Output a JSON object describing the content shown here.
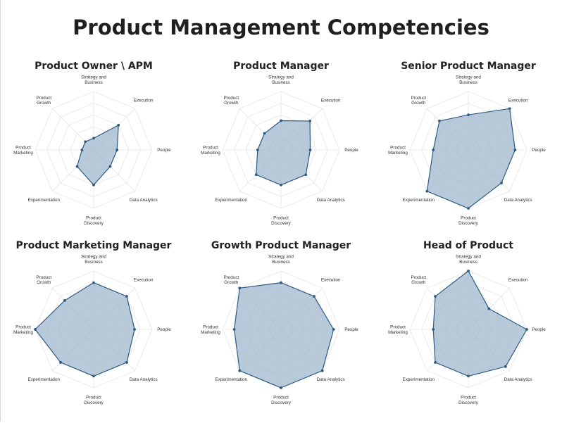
{
  "page": {
    "title": "Product Management Competencies"
  },
  "style": {
    "fill": "#9db6cc",
    "stroke": "#2b5a85",
    "grid": "#e6e6e6"
  },
  "chart_data": [
    {
      "type": "radar",
      "title": "Product Owner \\ APM",
      "axes": [
        [
          "Strategy and",
          "Business"
        ],
        [
          "Execution"
        ],
        [
          "People"
        ],
        [
          "Data Analytics"
        ],
        [
          "Product",
          "Discovery"
        ],
        [
          "Experimentation"
        ],
        [
          "Product",
          "Marketing"
        ],
        [
          "Product",
          "Growth"
        ]
      ],
      "values": [
        1,
        3,
        2,
        2,
        3,
        2,
        1,
        1
      ],
      "rlim": [
        0,
        5
      ],
      "grid": true
    },
    {
      "type": "radar",
      "title": "Product Manager",
      "axes": [
        [
          "Strategy and",
          "Business"
        ],
        [
          "Execution"
        ],
        [
          "People"
        ],
        [
          "Data Analytics"
        ],
        [
          "Product",
          "Discovery"
        ],
        [
          "Experimentation"
        ],
        [
          "Product",
          "Marketing"
        ],
        [
          "Product",
          "Growth"
        ]
      ],
      "values": [
        2.5,
        3.5,
        2.5,
        3,
        3,
        3,
        2,
        2
      ],
      "rlim": [
        0,
        5
      ],
      "grid": true
    },
    {
      "type": "radar",
      "title": "Senior Product Manager",
      "axes": [
        [
          "Strategy and",
          "Business"
        ],
        [
          "Execution"
        ],
        [
          "People"
        ],
        [
          "Data Analytics"
        ],
        [
          "Product",
          "Discovery"
        ],
        [
          "Experimentation"
        ],
        [
          "Product",
          "Marketing"
        ],
        [
          "Product",
          "Growth"
        ]
      ],
      "values": [
        3,
        5,
        4,
        4,
        5,
        5,
        3,
        3.5
      ],
      "rlim": [
        0,
        5
      ],
      "grid": true
    },
    {
      "type": "radar",
      "title": "Product Marketing Manager",
      "axes": [
        [
          "Strategy and",
          "Business"
        ],
        [
          "Execution"
        ],
        [
          "People"
        ],
        [
          "Data Analytics"
        ],
        [
          "Product",
          "Discovery"
        ],
        [
          "Experimentation"
        ],
        [
          "Product",
          "Marketing"
        ],
        [
          "Product",
          "Growth"
        ]
      ],
      "values": [
        4,
        4,
        3.5,
        4,
        4,
        4,
        5,
        3.5
      ],
      "rlim": [
        0,
        5
      ],
      "grid": true
    },
    {
      "type": "radar",
      "title": "Growth Product Manager",
      "axes": [
        [
          "Strategy and",
          "Business"
        ],
        [
          "Execution"
        ],
        [
          "People"
        ],
        [
          "Data Analytics"
        ],
        [
          "Product",
          "Discovery"
        ],
        [
          "Experimentation"
        ],
        [
          "Product",
          "Marketing"
        ],
        [
          "Product",
          "Growth"
        ]
      ],
      "values": [
        4,
        4,
        4.5,
        5,
        5,
        5,
        4,
        5
      ],
      "rlim": [
        0,
        5
      ],
      "grid": true
    },
    {
      "type": "radar",
      "title": "Head of Product",
      "axes": [
        [
          "Strategy and",
          "Business"
        ],
        [
          "Execution"
        ],
        [
          "People"
        ],
        [
          "Data Analytics"
        ],
        [
          "Product",
          "Discovery"
        ],
        [
          "Experimentation"
        ],
        [
          "Product",
          "Marketing"
        ],
        [
          "Product",
          "Growth"
        ]
      ],
      "values": [
        5,
        2.5,
        5,
        4.5,
        4,
        4,
        3,
        4
      ],
      "rlim": [
        0,
        5
      ],
      "grid": true
    }
  ]
}
